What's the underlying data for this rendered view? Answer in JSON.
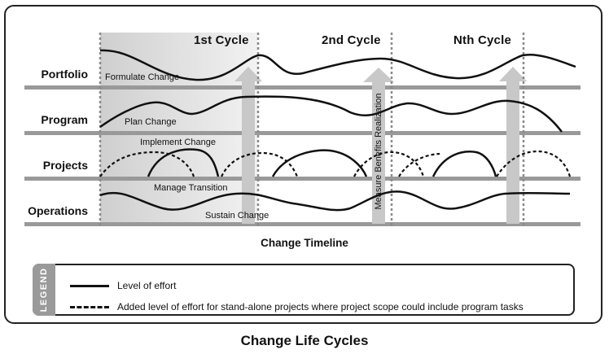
{
  "diagram": {
    "cycles": [
      "1st Cycle",
      "2nd Cycle",
      "Nth Cycle"
    ],
    "lanes": [
      "Portfolio",
      "Program",
      "Projects",
      "Operations"
    ],
    "curve_labels": {
      "formulate": "Formulate Change",
      "plan": "Plan Change",
      "implement": "Implement Change",
      "manage": "Manage Transition",
      "sustain": "Sustain Change"
    },
    "measure_label": "Measure Benefits Realization",
    "timeline_label": "Change Timeline"
  },
  "legend": {
    "tab_label": "LEGEND",
    "solid_text": "Level of effort",
    "dashed_text": "Added level of effort for stand-alone projects where project scope could include program tasks"
  },
  "caption": "Change Life Cycles",
  "colors": {
    "band": "#999999",
    "shade": "#dedede",
    "arrow": "#c8c8c8",
    "line": "#111111"
  }
}
